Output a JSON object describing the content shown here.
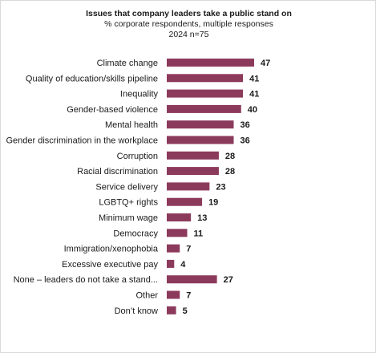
{
  "chart_data": {
    "type": "bar",
    "orientation": "horizontal",
    "title": "Issues that company leaders take a public stand on",
    "subtitle": "% corporate respondents, multiple responses",
    "subtitle2": "2024 n=75",
    "bar_color": "#8c3a5c",
    "categories": [
      "Climate change",
      "Quality of education/skills pipeline",
      "Inequality",
      "Gender-based violence",
      "Mental health",
      "Gender discrimination in the workplace",
      "Corruption",
      "Racial discrimination",
      "Service delivery",
      "LGBTQ+ rights",
      "Minimum wage",
      "Democracy",
      "Immigration/xenophobia",
      "Excessive executive pay",
      "None – leaders do not take a stand...",
      "Other",
      "Don’t know"
    ],
    "values": [
      47,
      41,
      41,
      40,
      36,
      36,
      28,
      28,
      23,
      19,
      13,
      11,
      7,
      4,
      27,
      7,
      5
    ],
    "xlim": [
      0,
      47
    ],
    "grid": false,
    "legend": "none"
  }
}
